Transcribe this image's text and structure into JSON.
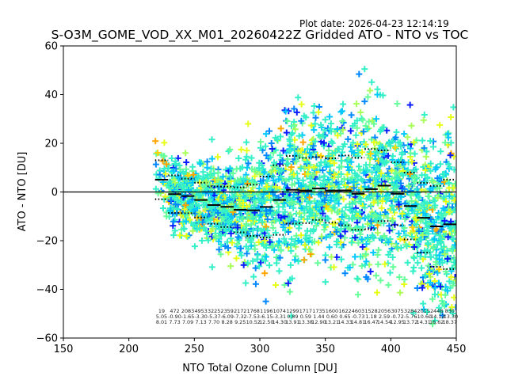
{
  "plot_date": "Plot date: 2026-04-23 12:14:19",
  "chart_data": {
    "type": "scatter",
    "title": "S-O3M_GOME_VOD_XX_M01_20260422Z Gridded ATO - NTO vs TOC",
    "xlabel": "NTO Total Ozone Column [DU]",
    "ylabel": "ATO - NTO [DU]",
    "xlim": [
      150,
      450
    ],
    "ylim": [
      -60,
      60
    ],
    "xticks": [
      150,
      200,
      250,
      300,
      350,
      400,
      450
    ],
    "yticks": [
      -60,
      -40,
      -20,
      0,
      20,
      40,
      60
    ],
    "reference_line_y": 0,
    "grid": false,
    "marker": "+",
    "colormap_colors": [
      "#0a1cff",
      "#0088ff",
      "#00c8ff",
      "#33f0c8",
      "#66ff99",
      "#a8ff5a",
      "#e6ff1a",
      "#ffd400",
      "#ffa500"
    ],
    "bins": {
      "centers": [
        225,
        235,
        245,
        255,
        265,
        275,
        285,
        295,
        305,
        315,
        325,
        335,
        345,
        355,
        365,
        375,
        385,
        395,
        405,
        415,
        425,
        435,
        445
      ],
      "counts": [
        "19",
        "472",
        "2083",
        "4953",
        "3225",
        "2359",
        "2172",
        "1768",
        "1196",
        "1074",
        "1299",
        "1717",
        "1735",
        "1600",
        "1622",
        "4603",
        "1528",
        "2056",
        "3075",
        "3284",
        "2015",
        "2448",
        "830"
      ],
      "means": [
        "5.05",
        "-0.90",
        "-1.65",
        "-3.30",
        "-5.37",
        "-6.09",
        "-7.32",
        "-7.53",
        "-6.15",
        "-3.31",
        "0.89",
        "0.59",
        "1.44",
        "0.60",
        "0.65",
        "-0.73",
        "1.18",
        "2.59",
        "-0.72",
        "-5.76",
        "-10.60",
        "-14.13",
        "-13.30"
      ],
      "stds": [
        "8.01",
        "7.73",
        "7.09",
        "7.13",
        "7.70",
        "8.28",
        "9.25",
        "10.52",
        "12.50",
        "14.30",
        "13.91",
        "13.38",
        "12.90",
        "13.21",
        "14.33",
        "14.81",
        "16.47",
        "14.54",
        "12.95",
        "13.72",
        "14.31",
        "16.62",
        "18.37"
      ]
    },
    "scatter_envelope": {
      "x_start": 222,
      "x_end": 450,
      "upper_edge": [
        [
          222,
          14
        ],
        [
          240,
          22
        ],
        [
          260,
          30
        ],
        [
          290,
          32
        ],
        [
          320,
          30
        ],
        [
          340,
          36
        ],
        [
          360,
          48
        ],
        [
          380,
          52
        ],
        [
          400,
          56
        ],
        [
          420,
          58
        ],
        [
          450,
          60
        ]
      ],
      "lower_edge": [
        [
          222,
          -4
        ],
        [
          240,
          -20
        ],
        [
          260,
          -28
        ],
        [
          290,
          -35
        ],
        [
          320,
          -42
        ],
        [
          340,
          -48
        ],
        [
          360,
          -56
        ],
        [
          380,
          -60
        ],
        [
          450,
          -60
        ]
      ]
    }
  }
}
